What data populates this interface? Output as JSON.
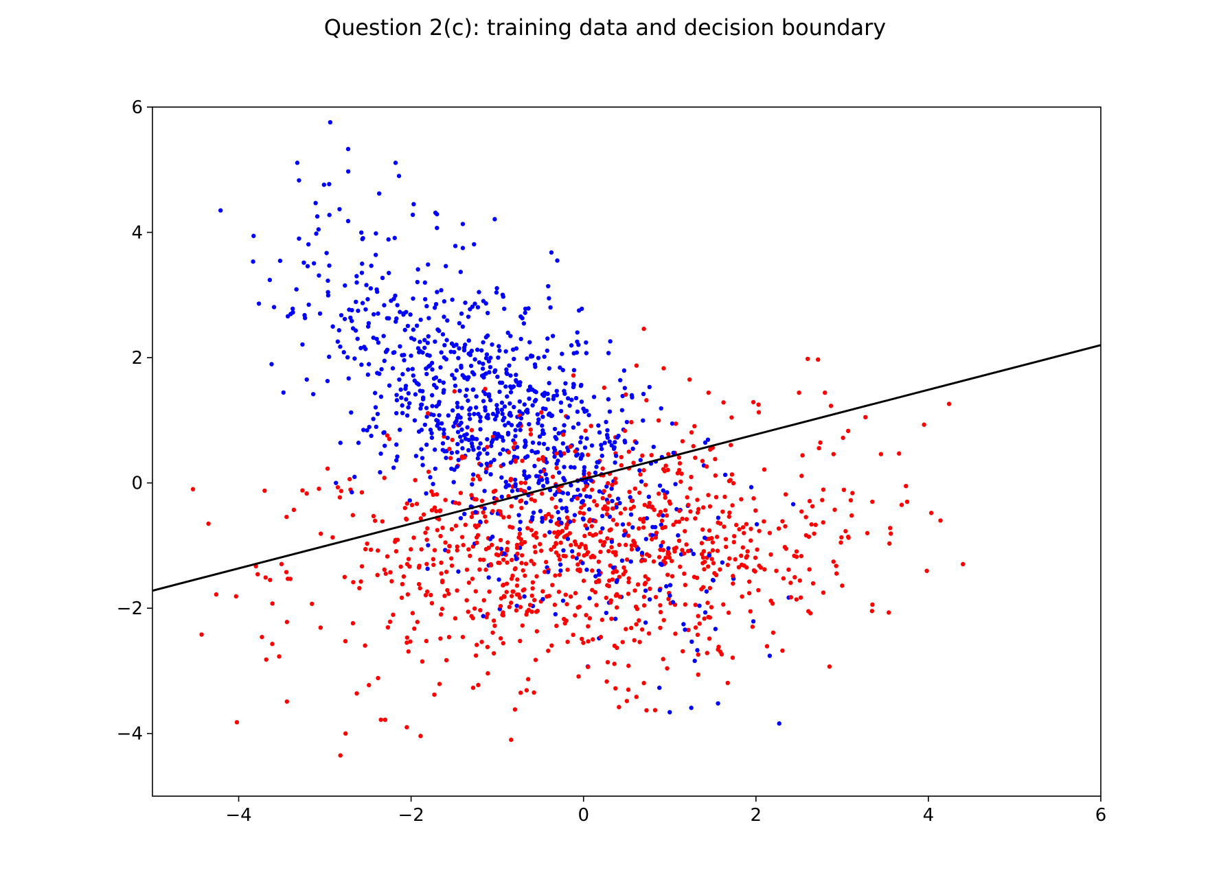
{
  "chart_data": {
    "type": "scatter",
    "title": "Question 2(c): training data and decision boundary",
    "xlabel": "",
    "ylabel": "",
    "xlim": [
      -5,
      6
    ],
    "ylim": [
      -5,
      6
    ],
    "x_ticks": [
      -4,
      -2,
      0,
      2,
      4,
      6
    ],
    "y_ticks": [
      -4,
      -2,
      0,
      2,
      4,
      6
    ],
    "x_tick_labels": [
      "−4",
      "−2",
      "0",
      "2",
      "4",
      "6"
    ],
    "y_tick_labels": [
      "−4",
      "−2",
      "0",
      "2",
      "4",
      "6"
    ],
    "grid": false,
    "legend": "none",
    "series": [
      {
        "color": "#0000ff",
        "marker": "dot",
        "cluster": {
          "mean": [
            -1.0,
            1.0
          ],
          "cov": [
            [
              1.1,
              -0.85
            ],
            [
              -0.85,
              1.6
            ]
          ],
          "count": 1000
        },
        "points": [
          [
            -2.73,
            5.33
          ],
          [
            -3.32,
            5.11
          ],
          [
            -2.18,
            5.11
          ],
          [
            -3.3,
            4.83
          ],
          [
            -2.14,
            4.9
          ],
          [
            -2.37,
            4.62
          ],
          [
            -2.95,
            4.77
          ],
          [
            -3.01,
            4.76
          ],
          [
            -1.97,
            4.45
          ],
          [
            -4.21,
            4.35
          ],
          [
            -2.83,
            4.37
          ],
          [
            -1.98,
            4.28
          ],
          [
            -2.73,
            4.18
          ],
          [
            -1.7,
            4.29
          ],
          [
            -1.7,
            4.07
          ],
          [
            -1.03,
            4.21
          ],
          [
            -3.1,
            3.98
          ],
          [
            -3.3,
            3.9
          ],
          [
            -2.19,
            3.91
          ],
          [
            -2.98,
            3.67
          ],
          [
            -1.27,
            3.81
          ],
          [
            -1.4,
            3.75
          ],
          [
            -3.2,
            3.46
          ],
          [
            -2.41,
            3.64
          ],
          [
            -0.41,
            3.14
          ],
          [
            -3.33,
            3.09
          ],
          [
            -3.43,
            2.66
          ],
          [
            -3.26,
            2.21
          ],
          [
            -3.21,
            1.65
          ],
          [
            -0.02,
            2.78
          ],
          [
            0.31,
            2.26
          ],
          [
            -0.71,
            2.63
          ],
          [
            -0.92,
            2.78
          ],
          [
            -1.01,
            3.04
          ],
          [
            -1.26,
            2.86
          ],
          [
            -0.25,
            2.06
          ],
          [
            -0.11,
            1.8
          ],
          [
            -0.18,
            1.35
          ],
          [
            0.56,
            1.4
          ],
          [
            0.9,
            1.19
          ],
          [
            -2.82,
            0.64
          ],
          [
            -2.61,
            0.64
          ],
          [
            -2.51,
            0.84
          ],
          [
            -2.32,
            0.8
          ],
          [
            -2.16,
            0.42
          ],
          [
            -2.36,
            0.17
          ],
          [
            0.72,
            -1.72
          ],
          [
            0.96,
            -1.65
          ],
          [
            0.72,
            -2.23
          ],
          [
            0.88,
            -3.27
          ],
          [
            0.44,
            -1.82
          ],
          [
            0.37,
            -2.17
          ],
          [
            0.18,
            -2.48
          ],
          [
            0.05,
            -2.93
          ],
          [
            1.0,
            -3.66
          ],
          [
            1.25,
            -3.59
          ],
          [
            1.56,
            -3.52
          ],
          [
            1.29,
            -2.84
          ],
          [
            1.32,
            -2.67
          ],
          [
            1.5,
            -1.55
          ],
          [
            1.61,
            -1.27
          ],
          [
            1.97,
            -2.21
          ],
          [
            2.01,
            -0.66
          ],
          [
            2.27,
            -3.84
          ],
          [
            2.38,
            -1.83
          ],
          [
            1.08,
            -0.42
          ],
          [
            0.92,
            -0.52
          ],
          [
            0.78,
            -0.38
          ],
          [
            0.57,
            -0.71
          ],
          [
            -0.08,
            -0.22
          ],
          [
            -0.5,
            -0.45
          ],
          [
            -0.38,
            -0.61
          ],
          [
            -0.74,
            -0.74
          ],
          [
            0.14,
            -1.49
          ],
          [
            -1.42,
            1.87
          ],
          [
            -1.08,
            1.32
          ],
          [
            -1.22,
            1.1
          ],
          [
            -0.92,
            1.04
          ],
          [
            -0.61,
            1.49
          ],
          [
            -1.8,
            2.34
          ]
        ]
      },
      {
        "color": "#ff0000",
        "marker": "dot",
        "cluster": {
          "mean": [
            0.0,
            -1.0
          ],
          "cov": [
            [
              2.0,
              0.1
            ],
            [
              0.1,
              0.9
            ]
          ],
          "count": 1000
        },
        "points": [
          [
            0.7,
            2.46
          ],
          [
            2.6,
            1.98
          ],
          [
            2.72,
            1.97
          ],
          [
            0.93,
            1.83
          ],
          [
            1.23,
            1.65
          ],
          [
            0.24,
            1.52
          ],
          [
            2.8,
            1.44
          ],
          [
            2.5,
            1.44
          ],
          [
            1.45,
            1.44
          ],
          [
            1.97,
            1.29
          ],
          [
            2.03,
            1.25
          ],
          [
            2.87,
            1.23
          ],
          [
            0.73,
            1.32
          ],
          [
            3.27,
            1.05
          ],
          [
            3.95,
            0.93
          ],
          [
            3.07,
            0.83
          ],
          [
            3.01,
            0.72
          ],
          [
            2.54,
            0.44
          ],
          [
            2.9,
            0.46
          ],
          [
            3.66,
            0.47
          ],
          [
            3.45,
            0.46
          ],
          [
            3.02,
            -0.11
          ],
          [
            3.74,
            -0.05
          ],
          [
            3.35,
            -0.3
          ],
          [
            3.69,
            -0.35
          ],
          [
            3.04,
            -0.77
          ],
          [
            3.07,
            -0.86
          ],
          [
            3.11,
            -0.52
          ],
          [
            2.78,
            -0.63
          ],
          [
            3.0,
            -1.64
          ],
          [
            2.62,
            -1.38
          ],
          [
            2.47,
            -1.86
          ],
          [
            2.52,
            -1.83
          ],
          [
            -4.53,
            -0.1
          ],
          [
            -4.35,
            -0.65
          ],
          [
            -4.43,
            -2.42
          ],
          [
            -4.26,
            -1.78
          ],
          [
            -4.03,
            -1.81
          ],
          [
            -3.8,
            -1.33
          ],
          [
            -3.73,
            -2.46
          ],
          [
            -3.68,
            -2.82
          ],
          [
            -3.61,
            -2.57
          ],
          [
            -3.53,
            -2.77
          ],
          [
            -3.36,
            -0.43
          ],
          [
            -3.43,
            -1.53
          ],
          [
            -3.44,
            -2.22
          ],
          [
            -3.44,
            -3.49
          ],
          [
            -3.26,
            -0.12
          ],
          [
            -3.15,
            -1.93
          ],
          [
            -3.05,
            -2.31
          ],
          [
            -2.91,
            -0.87
          ],
          [
            -2.85,
            -0.07
          ],
          [
            -2.82,
            -4.35
          ],
          [
            -2.76,
            -4.0
          ],
          [
            -2.63,
            -3.36
          ],
          [
            -2.51,
            -0.97
          ],
          [
            -2.35,
            -3.78
          ],
          [
            -2.05,
            -3.9
          ],
          [
            -1.89,
            -4.04
          ],
          [
            -0.84,
            -4.1
          ],
          [
            -2.05,
            -2.55
          ],
          [
            -1.87,
            -2.85
          ],
          [
            -1.73,
            -3.38
          ],
          [
            -1.59,
            -2.83
          ],
          [
            -1.28,
            -3.27
          ],
          [
            -1.11,
            -3.04
          ],
          [
            -0.66,
            -3.31
          ],
          [
            0.27,
            -3.17
          ],
          [
            0.52,
            -3.3
          ],
          [
            0.97,
            -2.96
          ],
          [
            1.33,
            -3.06
          ],
          [
            1.33,
            -2.74
          ],
          [
            1.56,
            -2.66
          ],
          [
            1.73,
            -2.79
          ],
          [
            2.2,
            -2.39
          ],
          [
            1.06,
            0.48
          ],
          [
            1.38,
            0.35
          ],
          [
            1.69,
            0.03
          ],
          [
            1.32,
            -0.27
          ],
          [
            1.86,
            -0.8
          ],
          [
            1.94,
            -0.92
          ],
          [
            1.76,
            -1.22
          ],
          [
            1.54,
            -1.47
          ],
          [
            1.03,
            -1.49
          ],
          [
            0.68,
            -1.15
          ],
          [
            0.49,
            -0.99
          ],
          [
            0.31,
            -1.32
          ],
          [
            0.1,
            -1.71
          ],
          [
            -0.29,
            -1.16
          ],
          [
            -0.57,
            -1.87
          ],
          [
            -0.86,
            -1.98
          ],
          [
            -1.03,
            -2.28
          ],
          [
            -1.25,
            -1.73
          ],
          [
            -1.59,
            -1.42
          ],
          [
            -1.88,
            -1.06
          ],
          [
            -2.18,
            -0.91
          ],
          [
            -2.39,
            -1.47
          ],
          [
            -2.6,
            -1.68
          ],
          [
            -1.7,
            -0.56
          ],
          [
            -1.24,
            -0.87
          ],
          [
            -0.77,
            -0.99
          ],
          [
            -0.45,
            -1.42
          ],
          [
            0.15,
            -1.95
          ],
          [
            0.52,
            -1.77
          ],
          [
            0.89,
            -1.69
          ],
          [
            1.18,
            -1.94
          ],
          [
            -2.31,
            0.08
          ],
          [
            -2.07,
            -0.4
          ],
          [
            -1.64,
            -2.01
          ],
          [
            -1.4,
            -2.46
          ],
          [
            -1.04,
            -2.72
          ],
          [
            -0.41,
            -2.68
          ],
          [
            -0.02,
            -2.49
          ],
          [
            0.36,
            -2.6
          ],
          [
            0.68,
            -2.34
          ],
          [
            2.1,
            -1.38
          ],
          [
            2.35,
            -1.05
          ],
          [
            1.46,
            -0.76
          ],
          [
            1.11,
            -0.62
          ],
          [
            0.58,
            0.32
          ]
        ]
      }
    ],
    "lines": [
      {
        "label": "",
        "color": "#000000",
        "style": "solid",
        "points": [
          [
            -5,
            -1.72
          ],
          [
            6,
            2.2
          ]
        ]
      }
    ]
  }
}
